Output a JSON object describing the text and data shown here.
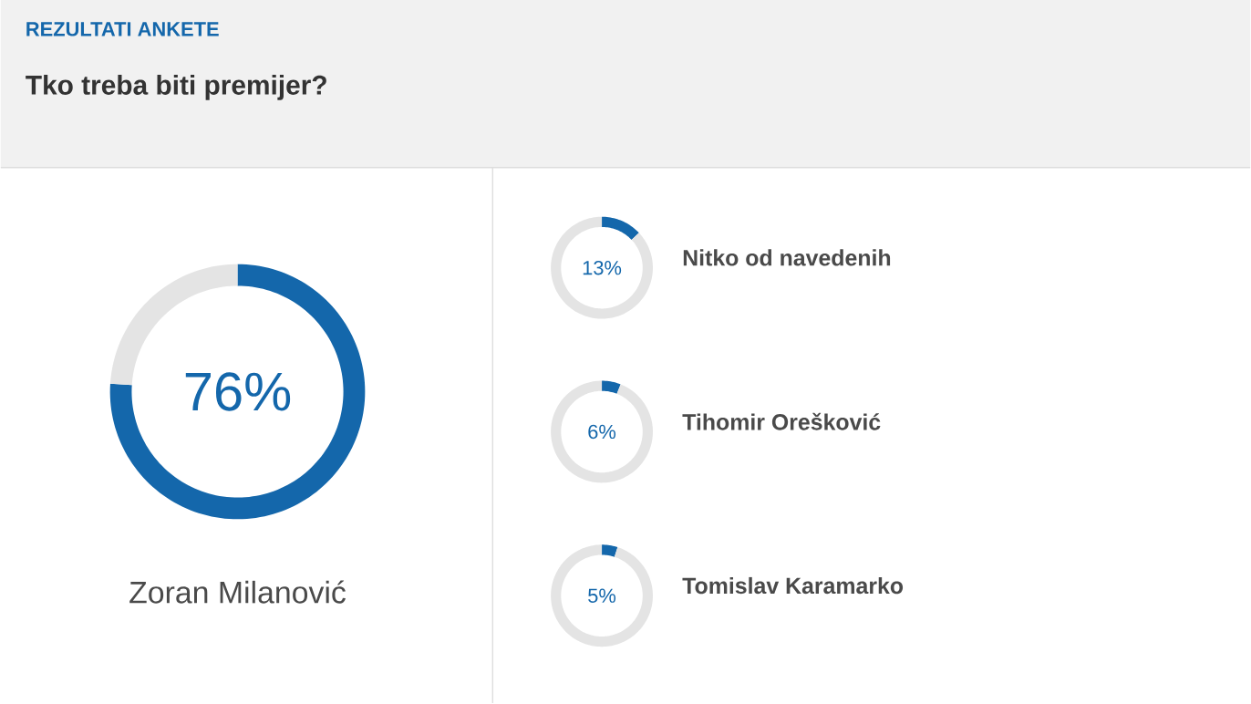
{
  "chart_data": [
    {
      "type": "donut",
      "title": "REZULTATI ANKETE",
      "subtitle": "Tko treba biti premijer?",
      "categories": [
        "Zoran Milanović",
        null
      ],
      "values": [
        76,
        24
      ],
      "colors": [
        "#1467ab",
        "#e4e4e4"
      ],
      "value_labels": [
        "76%",
        null
      ]
    },
    {
      "type": "donut",
      "title": "Nitko od navedenih",
      "categories": [
        null,
        null
      ],
      "values": [
        13,
        87
      ],
      "colors": [
        "#1467ab",
        "#e4e4e4"
      ],
      "annotations": [
        "13%"
      ]
    },
    {
      "type": "donut",
      "title": "Tihomir Orešković",
      "categories": [
        null,
        null
      ],
      "values": [
        6,
        94
      ],
      "colors": [
        "#1467ab",
        "#e4e4e4"
      ],
      "annotations": [
        "6%"
      ]
    },
    {
      "type": "donut",
      "title": "Tomislav Karamarko",
      "categories": [
        null,
        null
      ],
      "values": [
        5,
        95
      ],
      "colors": [
        "#1467ab",
        "#e4e4e4"
      ],
      "annotations": [
        "5%"
      ]
    }
  ]
}
